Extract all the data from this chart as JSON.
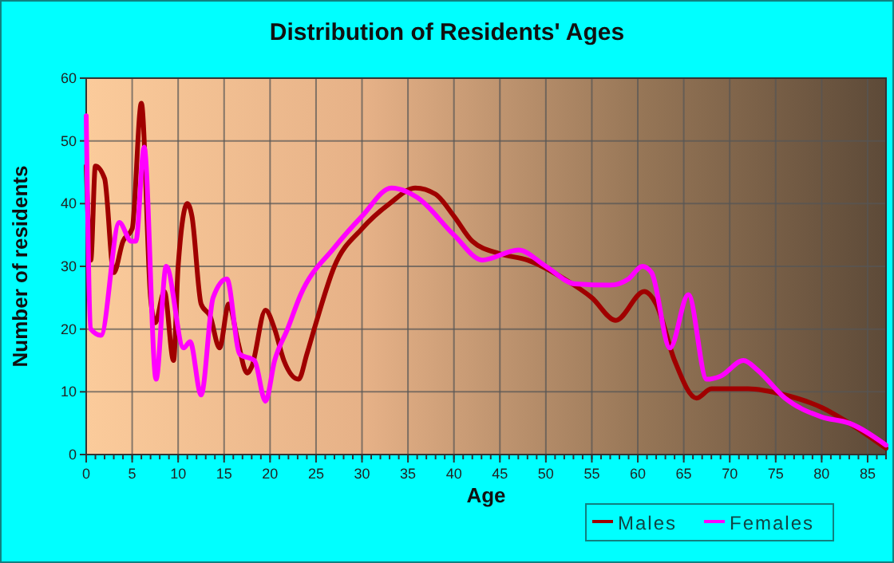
{
  "chart_data": {
    "type": "line",
    "title": "Distribution of Residents' Ages",
    "xlabel": "Age",
    "ylabel": "Number of residents",
    "xlim": [
      0,
      87
    ],
    "xticks": [
      0,
      5,
      10,
      15,
      20,
      25,
      30,
      35,
      40,
      45,
      50,
      55,
      60,
      65,
      70,
      75,
      80,
      85
    ],
    "ylim": [
      0,
      60
    ],
    "yticks": [
      0,
      10,
      20,
      30,
      40,
      50,
      60
    ],
    "grid": true,
    "legend": "bottom",
    "series": [
      {
        "name": "Males",
        "color": "#a00000",
        "x": [
          0,
          0.5,
          1,
          2,
          3,
          4,
          5,
          6,
          7,
          7.5,
          8.5,
          9.5,
          10,
          11,
          11.5,
          12.5,
          13.5,
          14.5,
          15.5,
          16.5,
          17.5,
          18,
          19.5,
          20.5,
          21.5,
          23.1,
          24,
          25,
          27,
          30,
          33,
          35.8,
          38,
          40,
          42,
          45,
          48,
          52,
          55,
          57.6,
          60.7,
          62,
          64,
          66.4,
          68,
          72,
          76,
          80,
          83,
          87
        ],
        "values": [
          46,
          31,
          46,
          44,
          29,
          34,
          36,
          56,
          25,
          21,
          26,
          15,
          30,
          40,
          38,
          24,
          22,
          17,
          24,
          18,
          13,
          14,
          23,
          20,
          15,
          12,
          16,
          21,
          30,
          36,
          40,
          42.5,
          41.5,
          38,
          34,
          32,
          31,
          28,
          25,
          21.4,
          26,
          24,
          15,
          9,
          10.5,
          10.5,
          9.5,
          7.5,
          5,
          1
        ]
      },
      {
        "name": "Females",
        "color": "#ff00ff",
        "x": [
          0,
          0.5,
          1.6,
          3.6,
          4.9,
          5.4,
          6.3,
          7.6,
          8.7,
          10.6,
          11.3,
          12.5,
          13.8,
          15.3,
          16.7,
          18.3,
          19.5,
          20.5,
          21.9,
          23.3,
          27,
          30,
          33.2,
          36,
          40,
          43.1,
          47,
          50,
          53.2,
          57,
          59,
          60.5,
          61.5,
          63.5,
          65.5,
          67.5,
          69,
          71.5,
          73,
          76,
          80,
          83,
          87
        ],
        "values": [
          54,
          20,
          19,
          37,
          34,
          34,
          49,
          12,
          30,
          17,
          18,
          9.5,
          25,
          28,
          16,
          15,
          8.5,
          15,
          20,
          25.4,
          33,
          38,
          42.5,
          41,
          35,
          31,
          32.6,
          30,
          27.2,
          27,
          28,
          30,
          29,
          17,
          25.5,
          12,
          12.5,
          15,
          13.5,
          9,
          6,
          5,
          1.5
        ]
      }
    ]
  }
}
